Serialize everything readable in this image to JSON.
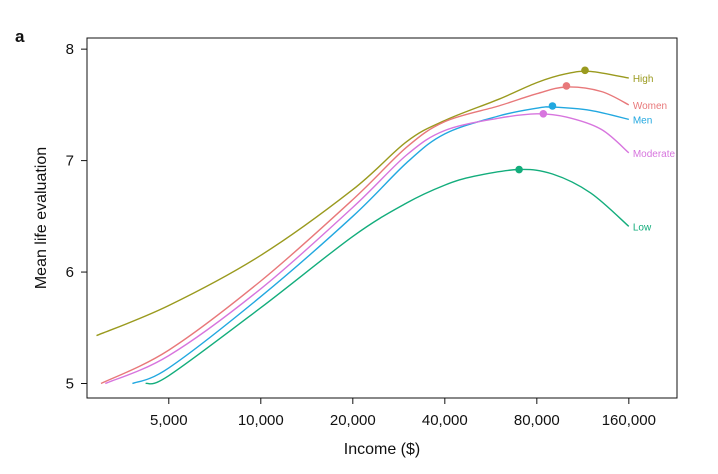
{
  "panel_label": "a",
  "chart_data": {
    "type": "line",
    "xlabel": "Income ($)",
    "ylabel": "Mean life evaluation",
    "x_scale": "log",
    "xlim": [
      2700,
      230000
    ],
    "ylim": [
      4.87,
      8.1
    ],
    "x_ticks": [
      5000,
      10000,
      20000,
      40000,
      80000,
      160000
    ],
    "x_tick_labels": [
      "5,000",
      "10,000",
      "20,000",
      "40,000",
      "80,000",
      "160,000"
    ],
    "y_ticks": [
      5,
      6,
      7,
      8
    ],
    "y_tick_labels": [
      "5",
      "6",
      "7",
      "8"
    ],
    "grid": false,
    "legend": "direct labels at right end of each line",
    "series": [
      {
        "name": "High",
        "color": "#9a9a1e",
        "x": [
          2900,
          5000,
          10000,
          20000,
          30000,
          40000,
          60000,
          80000,
          100000,
          120000,
          160000
        ],
        "y": [
          5.43,
          5.7,
          6.15,
          6.74,
          7.17,
          7.36,
          7.55,
          7.7,
          7.78,
          7.8,
          7.74
        ],
        "peak": {
          "x": 115000,
          "y": 7.81
        }
      },
      {
        "name": "Women",
        "color": "#e8787a",
        "x": [
          3000,
          5000,
          10000,
          20000,
          30000,
          40000,
          60000,
          80000,
          100000,
          130000,
          160000
        ],
        "y": [
          5.0,
          5.3,
          5.92,
          6.65,
          7.12,
          7.35,
          7.49,
          7.6,
          7.66,
          7.62,
          7.5
        ],
        "peak": {
          "x": 100000,
          "y": 7.67
        }
      },
      {
        "name": "Men",
        "color": "#22a8e0",
        "x": [
          3800,
          5000,
          10000,
          20000,
          30000,
          40000,
          60000,
          80000,
          90000,
          120000,
          160000
        ],
        "y": [
          5.0,
          5.14,
          5.78,
          6.5,
          6.98,
          7.24,
          7.4,
          7.47,
          7.48,
          7.45,
          7.37
        ],
        "peak": {
          "x": 90000,
          "y": 7.49
        }
      },
      {
        "name": "Moderate",
        "color": "#d775de",
        "x": [
          3100,
          5000,
          10000,
          20000,
          30000,
          40000,
          60000,
          80000,
          100000,
          130000,
          160000
        ],
        "y": [
          5.0,
          5.25,
          5.85,
          6.58,
          7.05,
          7.27,
          7.38,
          7.42,
          7.39,
          7.28,
          7.07
        ],
        "peak": {
          "x": 84000,
          "y": 7.42
        }
      },
      {
        "name": "Low",
        "color": "#13ad7c",
        "x": [
          4200,
          5000,
          10000,
          20000,
          30000,
          40000,
          50000,
          70000,
          90000,
          120000,
          160000
        ],
        "y": [
          5.0,
          5.07,
          5.68,
          6.32,
          6.62,
          6.78,
          6.86,
          6.92,
          6.88,
          6.71,
          6.41
        ],
        "peak": {
          "x": 70000,
          "y": 6.92
        }
      }
    ]
  }
}
